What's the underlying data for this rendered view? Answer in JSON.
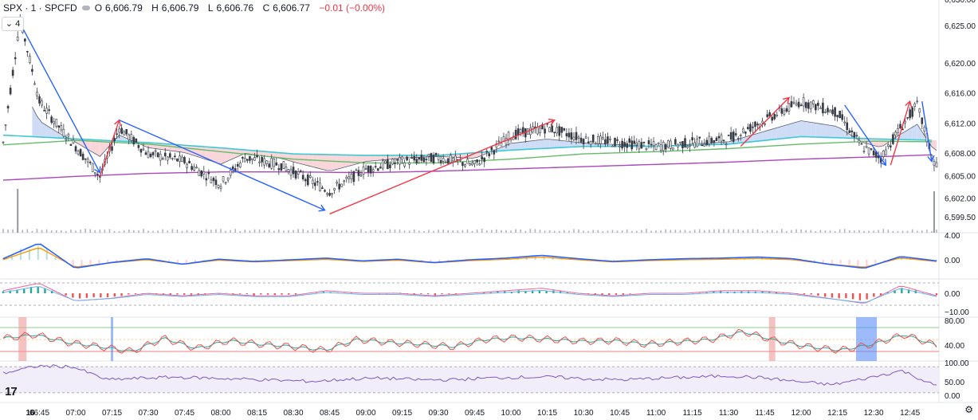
{
  "header": {
    "symbol": "SPX · 1 · SPCFD",
    "open_label": "O",
    "open": "6,606.79",
    "high_label": "H",
    "high": "6,606.79",
    "low_label": "L",
    "low": "6,606.76",
    "close_label": "C",
    "close": "6,606.77",
    "change": "−0.01 (−0.00%)",
    "indicators_toggle": "⌄ 4"
  },
  "colors": {
    "up": "#26a69a",
    "down": "#ef5350",
    "candle": "#363a45",
    "ema_fast": "#5b6270",
    "ema_teal": "#3dc9d4",
    "ema_green": "#66bb6a",
    "vwap": "#ab47bc",
    "cloud_up": "#c5d6f5",
    "cloud_down": "#f8cfd3",
    "trend_blue": "#2962ff",
    "trend_red": "#f23645",
    "macd_line": "#2962ff",
    "signal_line": "#ff9800",
    "rsi_line": "#7e57c2",
    "rsi_fill": "#ede7f6"
  },
  "chart_data": [
    {
      "type": "candlestick",
      "pane": "price",
      "ylim": [
        6597.5,
        6628.5
      ],
      "yticks": [
        "6,625.00",
        "6,620.00",
        "6,616.00",
        "6,612.00",
        "6,608.00",
        "6,605.00",
        "6,602.00",
        "6,599.50"
      ],
      "top_tick_partial": "6,630.00",
      "x_ticks": [
        "16",
        "06:45",
        "07:00",
        "07:15",
        "07:30",
        "07:45",
        "08:00",
        "08:15",
        "08:30",
        "08:45",
        "09:00",
        "09:15",
        "09:30",
        "09:45",
        "10:00",
        "10:15",
        "10:30",
        "10:45",
        "11:00",
        "11:15",
        "11:30",
        "11:45",
        "12:00",
        "12:15",
        "12:30",
        "12:45"
      ],
      "close_path": [
        {
          "t": "06:30",
          "v": 6609.5
        },
        {
          "t": "06:37",
          "v": 6626.0
        },
        {
          "t": "06:45",
          "v": 6615.0
        },
        {
          "t": "06:52",
          "v": 6612.0
        },
        {
          "t": "07:00",
          "v": 6609.0
        },
        {
          "t": "07:10",
          "v": 6605.0
        },
        {
          "t": "07:18",
          "v": 6611.5
        },
        {
          "t": "07:30",
          "v": 6608.0
        },
        {
          "t": "07:45",
          "v": 6607.0
        },
        {
          "t": "08:00",
          "v": 6604.0
        },
        {
          "t": "08:10",
          "v": 6607.5
        },
        {
          "t": "08:25",
          "v": 6606.5
        },
        {
          "t": "08:45",
          "v": 6603.0
        },
        {
          "t": "09:00",
          "v": 6606.0
        },
        {
          "t": "09:15",
          "v": 6607.0
        },
        {
          "t": "09:30",
          "v": 6607.5
        },
        {
          "t": "09:45",
          "v": 6606.5
        },
        {
          "t": "10:00",
          "v": 6610.5
        },
        {
          "t": "10:15",
          "v": 6611.5
        },
        {
          "t": "10:30",
          "v": 6610.0
        },
        {
          "t": "10:45",
          "v": 6609.5
        },
        {
          "t": "11:00",
          "v": 6609.0
        },
        {
          "t": "11:15",
          "v": 6609.5
        },
        {
          "t": "11:30",
          "v": 6610.0
        },
        {
          "t": "11:45",
          "v": 6612.5
        },
        {
          "t": "12:00",
          "v": 6615.0
        },
        {
          "t": "12:15",
          "v": 6613.5
        },
        {
          "t": "12:25",
          "v": 6609.0
        },
        {
          "t": "12:33",
          "v": 6607.5
        },
        {
          "t": "12:40",
          "v": 6611.0
        },
        {
          "t": "12:48",
          "v": 6614.5
        },
        {
          "t": "12:55",
          "v": 6606.8
        }
      ],
      "trendlines": [
        {
          "color": "blue",
          "from": {
            "t": "06:36",
            "v": 6626.0
          },
          "to": {
            "t": "07:10",
            "v": 6605.5
          }
        },
        {
          "color": "red",
          "from": {
            "t": "07:10",
            "v": 6605.0
          },
          "to": {
            "t": "07:18",
            "v": 6612.5
          }
        },
        {
          "color": "blue",
          "from": {
            "t": "07:18",
            "v": 6612.5
          },
          "to": {
            "t": "08:43",
            "v": 6600.5
          }
        },
        {
          "color": "red",
          "from": {
            "t": "08:45",
            "v": 6600.0
          },
          "to": {
            "t": "10:18",
            "v": 6612.5
          }
        },
        {
          "color": "red",
          "from": {
            "t": "11:35",
            "v": 6609.0
          },
          "to": {
            "t": "11:55",
            "v": 6615.5
          }
        },
        {
          "color": "blue",
          "from": {
            "t": "12:18",
            "v": 6614.5
          },
          "to": {
            "t": "12:35",
            "v": 6606.5
          }
        },
        {
          "color": "red",
          "from": {
            "t": "12:37",
            "v": 6606.5
          },
          "to": {
            "t": "12:45",
            "v": 6615.0
          }
        },
        {
          "color": "blue",
          "from": {
            "t": "12:50",
            "v": 6615.0
          },
          "to": {
            "t": "12:54",
            "v": 6607.0
          }
        }
      ],
      "ema_teal": [
        {
          "t": "06:30",
          "v": 6610.5
        },
        {
          "t": "07:00",
          "v": 6610.0
        },
        {
          "t": "07:30",
          "v": 6609.5
        },
        {
          "t": "08:00",
          "v": 6608.8
        },
        {
          "t": "08:30",
          "v": 6608.0
        },
        {
          "t": "09:00",
          "v": 6607.8
        },
        {
          "t": "09:30",
          "v": 6607.8
        },
        {
          "t": "10:00",
          "v": 6608.5
        },
        {
          "t": "10:30",
          "v": 6609.0
        },
        {
          "t": "11:00",
          "v": 6609.0
        },
        {
          "t": "11:30",
          "v": 6609.3
        },
        {
          "t": "12:00",
          "v": 6610.3
        },
        {
          "t": "12:30",
          "v": 6610.0
        },
        {
          "t": "12:56",
          "v": 6609.8
        }
      ],
      "ema_green": [
        {
          "t": "06:30",
          "v": 6609.2
        },
        {
          "t": "07:00",
          "v": 6609.8
        },
        {
          "t": "07:30",
          "v": 6609.3
        },
        {
          "t": "08:00",
          "v": 6608.3
        },
        {
          "t": "08:30",
          "v": 6607.3
        },
        {
          "t": "09:00",
          "v": 6606.8
        },
        {
          "t": "09:30",
          "v": 6606.8
        },
        {
          "t": "10:00",
          "v": 6607.3
        },
        {
          "t": "10:30",
          "v": 6608.0
        },
        {
          "t": "11:00",
          "v": 6608.3
        },
        {
          "t": "11:30",
          "v": 6608.7
        },
        {
          "t": "12:00",
          "v": 6609.3
        },
        {
          "t": "12:30",
          "v": 6609.7
        },
        {
          "t": "12:56",
          "v": 6609.6
        }
      ],
      "vwap": [
        {
          "t": "06:30",
          "v": 6604.5
        },
        {
          "t": "07:00",
          "v": 6605.0
        },
        {
          "t": "07:30",
          "v": 6605.4
        },
        {
          "t": "08:00",
          "v": 6605.6
        },
        {
          "t": "08:30",
          "v": 6605.6
        },
        {
          "t": "09:00",
          "v": 6605.5
        },
        {
          "t": "09:30",
          "v": 6605.7
        },
        {
          "t": "10:00",
          "v": 6606.0
        },
        {
          "t": "10:30",
          "v": 6606.3
        },
        {
          "t": "11:00",
          "v": 6606.6
        },
        {
          "t": "11:30",
          "v": 6606.9
        },
        {
          "t": "12:00",
          "v": 6607.3
        },
        {
          "t": "12:30",
          "v": 6607.6
        },
        {
          "t": "12:56",
          "v": 6607.9
        }
      ]
    },
    {
      "type": "histogram+line",
      "pane": "macd",
      "yticks": [
        "4.00",
        "0.00"
      ],
      "series": [
        {
          "name": "",
          "values": [
            0.2,
            3.0,
            -1.5,
            -0.5,
            0.2,
            -0.8,
            0.1,
            -0.3,
            0.0,
            0.3,
            -0.2,
            0.1,
            -0.5,
            0.0,
            0.3,
            0.8,
            0.2,
            -0.3,
            0.0,
            0.2,
            0.3,
            0.5,
            0.2,
            -0.8,
            -1.5,
            0.6,
            -0.2
          ]
        }
      ]
    },
    {
      "type": "histogram+line",
      "pane": "oscillator",
      "yticks": [
        "0.00",
        "−10.00"
      ],
      "series": [
        {
          "name": "",
          "values": [
            1,
            4,
            -3,
            -2,
            0,
            -1,
            0,
            -1,
            -1,
            1,
            0,
            0,
            -1,
            0,
            1,
            2,
            0,
            -1,
            0,
            0,
            1,
            1,
            0,
            -2,
            -4,
            3,
            -1
          ]
        }
      ]
    },
    {
      "type": "line",
      "pane": "stochastic",
      "yticks": [
        "80.00",
        "40.00"
      ],
      "series": [
        {
          "name": "",
          "values": [
            62,
            68,
            55,
            48,
            40,
            62,
            45,
            58,
            52,
            48,
            42,
            60,
            55,
            52,
            48,
            60,
            63,
            60,
            57,
            58,
            52,
            56,
            60,
            73,
            58,
            48,
            42,
            52,
            68,
            50
          ]
        }
      ]
    },
    {
      "type": "line",
      "pane": "rsi",
      "yticks": [
        "100.00",
        "50.00",
        "0.00"
      ],
      "series": [
        {
          "name": "",
          "values": [
            70,
            92,
            90,
            50,
            55,
            58,
            55,
            52,
            48,
            45,
            52,
            55,
            50,
            50,
            55,
            58,
            58,
            52,
            50,
            55,
            58,
            62,
            56,
            44,
            35,
            55,
            78,
            30
          ]
        }
      ]
    }
  ],
  "footer": {
    "logo": "17",
    "settings_icon": "gear-icon"
  }
}
